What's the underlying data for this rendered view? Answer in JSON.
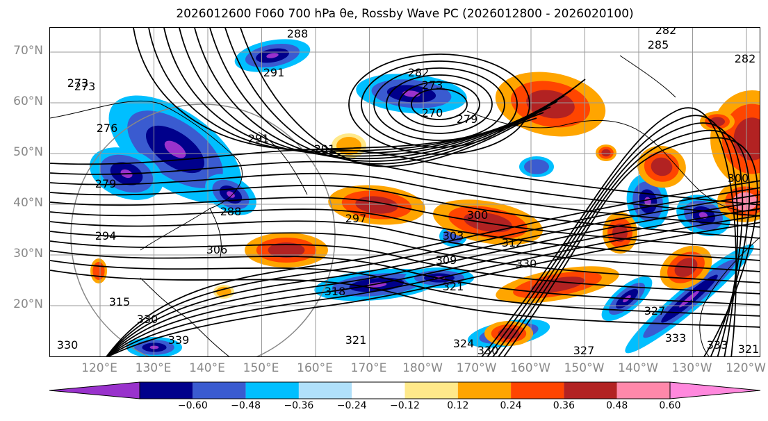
{
  "title": "2026012600 F060 700 hPa θe, Rossby Wave PC (2026012800 - 2026020100)",
  "map": {
    "lat_labels": [
      "70°N",
      "60°N",
      "50°N",
      "40°N",
      "30°N",
      "20°N"
    ],
    "lon_labels": [
      "120°E",
      "130°E",
      "140°E",
      "150°E",
      "160°E",
      "170°E",
      "180°W",
      "170°W",
      "160°W",
      "150°W",
      "140°W",
      "130°W",
      "120°W"
    ],
    "contour_labels": [
      "288",
      "282",
      "285",
      "282",
      "291",
      "273",
      "282",
      "273",
      "279",
      "270",
      "276",
      "291",
      "291",
      "279",
      "294",
      "288",
      "297",
      "300",
      "303",
      "306",
      "312",
      "309",
      "330",
      "318",
      "321",
      "315",
      "330",
      "339",
      "330",
      "327",
      "321",
      "324",
      "330",
      "327",
      "321",
      "333",
      "333",
      "300",
      "273"
    ],
    "colors": {
      "land_outline": "#000000",
      "grid": "#999999"
    }
  },
  "colorbar": {
    "ticks": [
      "−0.60",
      "−0.48",
      "−0.36",
      "−0.24",
      "−0.12",
      "0.12",
      "0.24",
      "0.36",
      "0.48",
      "0.60"
    ],
    "colors": [
      "#9932cc",
      "#00008b",
      "#3a5bd0",
      "#00bfff",
      "#b0e0fa",
      "#ffffff",
      "#ffe98a",
      "#ffa500",
      "#ff4500",
      "#b22222",
      "#ff88aa",
      "#ff88dd"
    ]
  },
  "chart_data": {
    "type": "heatmap",
    "title": "2026012600 F060 700 hPa θe, Rossby Wave PC (2026012800 - 2026020100)",
    "xlabel": "",
    "ylabel": "",
    "x_ticks": [
      "120°E",
      "130°E",
      "140°E",
      "150°E",
      "160°E",
      "170°E",
      "180°W",
      "170°W",
      "160°W",
      "150°W",
      "140°W",
      "130°W",
      "120°W"
    ],
    "y_ticks": [
      "70°N",
      "60°N",
      "50°N",
      "40°N",
      "30°N",
      "20°N"
    ],
    "colorbar_levels": [
      -0.6,
      -0.48,
      -0.36,
      -0.24,
      -0.12,
      0.12,
      0.24,
      0.36,
      0.48,
      0.6
    ],
    "contour_levels": [
      270,
      273,
      276,
      279,
      282,
      285,
      288,
      291,
      294,
      297,
      300,
      303,
      306,
      309,
      312,
      315,
      318,
      321,
      324,
      327,
      330,
      333,
      339
    ]
  }
}
